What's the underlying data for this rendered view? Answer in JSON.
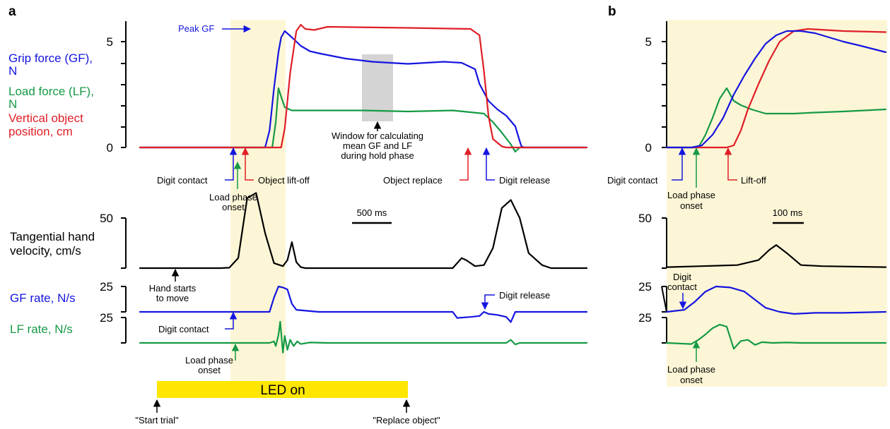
{
  "panels": {
    "a": "a",
    "b": "b"
  },
  "colors": {
    "gf": "#1515e0",
    "lf": "#159a45",
    "pos": "#e01e26",
    "vel": "#000000",
    "shade": "#fdf6d6",
    "window": "#d4d4d4",
    "led": "#ffe600"
  },
  "labels": {
    "a": {
      "ylabel_gf": [
        "Grip force (GF),",
        "N"
      ],
      "ylabel_lf": [
        "Load force (LF),",
        "N"
      ],
      "ylabel_pos": [
        "Vertical object",
        "position, cm"
      ],
      "ylabel_vel": [
        "Tangential hand",
        "velocity, cm/s"
      ],
      "ylabel_gfrate": "GF rate, N/s",
      "ylabel_lfrate": "LF rate, N/s",
      "peak_gf": "Peak GF",
      "digit_contact": "Digit contact",
      "object_liftoff": "Object lift-off",
      "load_phase_onset": [
        "Load phase",
        "onset"
      ],
      "window_text": [
        "Window for calculating",
        "mean GF and LF",
        "during hold phase"
      ],
      "object_replace": "Object replace",
      "digit_release": "Digit release",
      "scale_bar": "500 ms",
      "hand_starts": [
        "Hand starts",
        "to move"
      ],
      "rate_digit_release": "Digit release",
      "rate_digit_contact": "Digit contact",
      "rate_load_phase_onset": [
        "Load phase",
        "onset"
      ],
      "led_on": "LED on",
      "start_trial": "\"Start trial\"",
      "replace_object": "\"Replace object\""
    },
    "b": {
      "digit_contact": "Digit contact",
      "load_phase_onset": [
        "Load phase",
        "onset"
      ],
      "liftoff": "Lift-off",
      "scale_bar": "100 ms",
      "rate_digit_contact": [
        "Digit",
        "contact"
      ],
      "rate_load_phase_onset": [
        "Load phase",
        "onset"
      ]
    }
  },
  "chart_data": [
    {
      "type": "line",
      "panel": "a",
      "title": "",
      "ticks": {
        "force": [
          "0",
          "5"
        ],
        "velocity": [
          "50"
        ],
        "gf_rate": "25",
        "lf_rate": "25"
      },
      "series": [
        {
          "name": "Grip force (GF), N",
          "x": [
            0,
            1.4,
            1.45,
            1.5,
            1.55,
            1.58,
            1.62,
            1.7,
            1.8,
            1.9,
            2.0,
            2.3,
            2.6,
            2.8,
            3.0,
            3.2,
            3.4,
            3.6,
            3.75,
            3.8,
            3.9,
            4.0,
            4.1,
            4.2,
            4.25,
            4.27,
            4.3,
            5.0
          ],
          "y": [
            0,
            0,
            0.8,
            2.8,
            4.5,
            5.2,
            5.5,
            5.2,
            4.8,
            4.55,
            4.45,
            4.2,
            4.05,
            4.0,
            3.95,
            4.0,
            4.05,
            4.0,
            3.7,
            3.0,
            2.2,
            1.8,
            1.5,
            1.0,
            0.3,
            0.05,
            0,
            0
          ]
        },
        {
          "name": "Load force (LF), N",
          "x": [
            0,
            1.48,
            1.52,
            1.55,
            1.58,
            1.62,
            1.7,
            2.0,
            2.5,
            3.0,
            3.5,
            3.85,
            3.95,
            4.05,
            4.15,
            4.2,
            4.25,
            4.5,
            5.0
          ],
          "y": [
            0,
            0,
            1.2,
            2.8,
            2.4,
            1.9,
            1.75,
            1.75,
            1.75,
            1.7,
            1.75,
            1.6,
            1.2,
            0.7,
            0.15,
            -0.2,
            0,
            0,
            0
          ]
        },
        {
          "name": "Vertical object position, cm",
          "x": [
            0,
            1.58,
            1.62,
            1.68,
            1.75,
            1.8,
            1.85,
            1.95,
            2.1,
            3.0,
            3.7,
            3.8,
            3.85,
            3.9,
            3.95,
            4.05,
            4.1,
            4.15,
            5.0
          ],
          "y": [
            0,
            0,
            0.9,
            3.5,
            5.5,
            5.8,
            5.6,
            5.55,
            5.7,
            5.65,
            5.6,
            5.3,
            3.6,
            1.5,
            0.4,
            0.05,
            0,
            0,
            0
          ]
        },
        {
          "name": "Tangential hand velocity, cm/s",
          "x": [
            0,
            0.9,
            1.0,
            1.1,
            1.2,
            1.3,
            1.4,
            1.5,
            1.6,
            1.65,
            1.7,
            1.75,
            1.8,
            1.85,
            2.0,
            3.5,
            3.6,
            3.65,
            3.75,
            3.85,
            3.95,
            4.05,
            4.15,
            4.25,
            4.35,
            4.5,
            4.6,
            5.0
          ],
          "y": [
            0,
            0,
            0.4,
            10,
            70,
            75,
            35,
            5,
            2,
            8,
            26,
            6,
            1,
            0,
            0,
            0,
            10,
            8,
            2,
            3,
            20,
            60,
            68,
            50,
            15,
            3,
            0,
            0
          ]
        },
        {
          "name": "GF rate, N/s",
          "x": [
            0,
            1.45,
            1.5,
            1.55,
            1.6,
            1.65,
            1.7,
            1.75,
            2.0,
            3.5,
            3.55,
            3.7,
            3.8,
            3.85,
            3.9,
            4.0,
            4.1,
            4.15,
            4.2,
            5.0
          ],
          "y": [
            0,
            0,
            14,
            25,
            24,
            22,
            8,
            2,
            0,
            0,
            -6,
            -5,
            -4,
            0,
            -2,
            -3,
            -5,
            -10,
            0,
            0
          ]
        },
        {
          "name": "LF rate, N/s",
          "x": [
            0,
            1.45,
            1.5,
            1.52,
            1.55,
            1.57,
            1.6,
            1.62,
            1.65,
            1.68,
            1.72,
            1.76,
            1.8,
            1.9,
            2.1,
            3.5,
            4.1,
            4.15,
            4.2,
            4.25,
            5.0
          ],
          "y": [
            0,
            0,
            4,
            -8,
            20,
            55,
            -25,
            18,
            -18,
            8,
            -8,
            4,
            -3,
            1,
            0,
            0,
            0,
            8,
            -4,
            0,
            0
          ]
        }
      ]
    },
    {
      "type": "line",
      "panel": "b",
      "title": "",
      "ticks": {
        "force": [
          "0",
          "5"
        ],
        "velocity": [
          "50"
        ],
        "gf_rate": "25",
        "lf_rate": "25"
      },
      "series": [
        {
          "name": "Grip force (GF), N",
          "x": [
            0,
            0.07,
            0.1,
            0.13,
            0.16,
            0.19,
            0.22,
            0.25,
            0.28,
            0.31,
            0.34,
            0.38,
            0.42,
            0.46,
            0.5,
            0.55,
            0.62
          ],
          "y": [
            0,
            0,
            0.1,
            0.6,
            1.4,
            2.5,
            3.4,
            4.2,
            4.9,
            5.3,
            5.5,
            5.5,
            5.4,
            5.2,
            5.0,
            4.8,
            4.5
          ]
        },
        {
          "name": "Load force (LF), N",
          "x": [
            0,
            0.09,
            0.11,
            0.13,
            0.15,
            0.17,
            0.19,
            0.21,
            0.24,
            0.28,
            0.32,
            0.36,
            0.42,
            0.5,
            0.62
          ],
          "y": [
            0,
            0,
            0.6,
            1.4,
            2.3,
            2.8,
            2.2,
            2.0,
            1.8,
            1.6,
            1.6,
            1.6,
            1.65,
            1.7,
            1.8
          ]
        },
        {
          "name": "Vertical object position, cm",
          "x": [
            0,
            0.17,
            0.19,
            0.21,
            0.23,
            0.26,
            0.29,
            0.32,
            0.36,
            0.4,
            0.45,
            0.5,
            0.62
          ],
          "y": [
            0,
            0,
            0.1,
            0.8,
            1.8,
            3.0,
            4.1,
            5.0,
            5.5,
            5.6,
            5.55,
            5.5,
            5.45
          ]
        },
        {
          "name": "Tangential hand velocity, cm/s",
          "x": [
            0,
            0.1,
            0.2,
            0.26,
            0.29,
            0.31,
            0.34,
            0.38,
            0.44,
            0.62
          ],
          "y": [
            1,
            2,
            3,
            8,
            18,
            23,
            15,
            3,
            2,
            1
          ]
        },
        {
          "name": "GF rate, N/s",
          "x": [
            0,
            0.05,
            0.08,
            0.11,
            0.14,
            0.18,
            0.22,
            0.25,
            0.28,
            0.32,
            0.36,
            0.42,
            0.5,
            0.62
          ],
          "y": [
            0,
            2,
            10,
            20,
            25,
            24,
            20,
            12,
            4,
            0,
            -2,
            -1,
            -1,
            0
          ]
        },
        {
          "name": "LF rate, N/s",
          "x": [
            0,
            0.07,
            0.09,
            0.11,
            0.13,
            0.15,
            0.17,
            0.19,
            0.21,
            0.23,
            0.25,
            0.27,
            0.3,
            0.34,
            0.38,
            0.44,
            0.5,
            0.62
          ],
          "y": [
            0,
            -3,
            8,
            22,
            38,
            47,
            42,
            -15,
            5,
            8,
            -5,
            2,
            0,
            1,
            0,
            0,
            0,
            0
          ]
        }
      ]
    }
  ]
}
